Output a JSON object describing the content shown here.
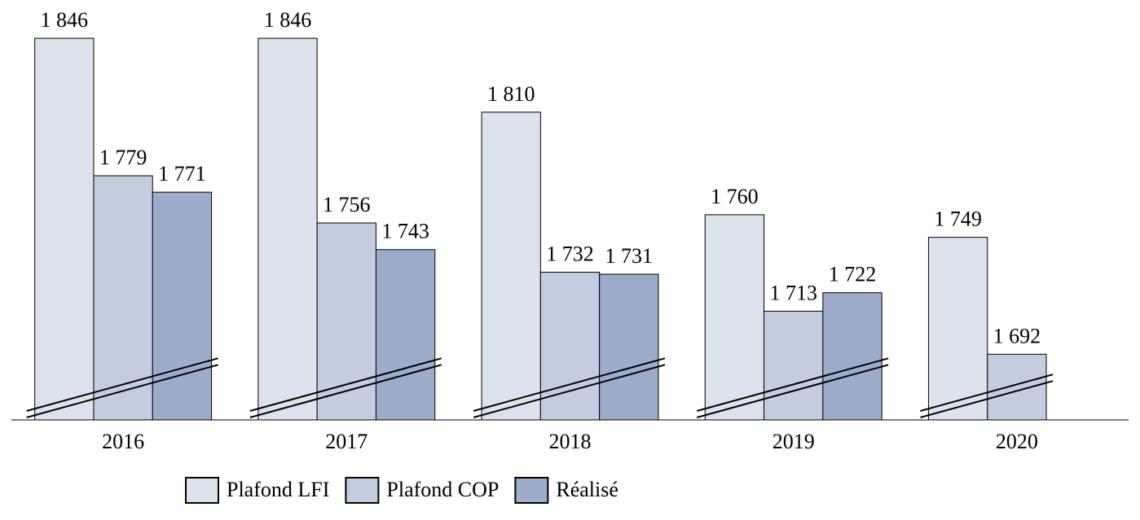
{
  "chart_data": {
    "type": "bar",
    "categories": [
      "2016",
      "2017",
      "2018",
      "2019",
      "2020"
    ],
    "series": [
      {
        "name": "Plafond LFI",
        "color": "#dde3ed",
        "values": [
          1846,
          1846,
          1810,
          1760,
          1749
        ],
        "value_labels": [
          "1 846",
          "1 846",
          "1 810",
          "1 760",
          "1 749"
        ]
      },
      {
        "name": "Plafond COP",
        "color": "#c3cddf",
        "values": [
          1779,
          1756,
          1732,
          1713,
          1692
        ],
        "value_labels": [
          "1 779",
          "1 756",
          "1 732",
          "1 713",
          "1 692"
        ]
      },
      {
        "name": "Réalisé",
        "color": "#9cadcb",
        "values": [
          1771,
          1743,
          1731,
          1722,
          null
        ],
        "value_labels": [
          "1 771",
          "1 743",
          "1 731",
          "1 722",
          null
        ]
      }
    ],
    "ylim": [
      1660,
      1850
    ],
    "legend": "bottom"
  }
}
